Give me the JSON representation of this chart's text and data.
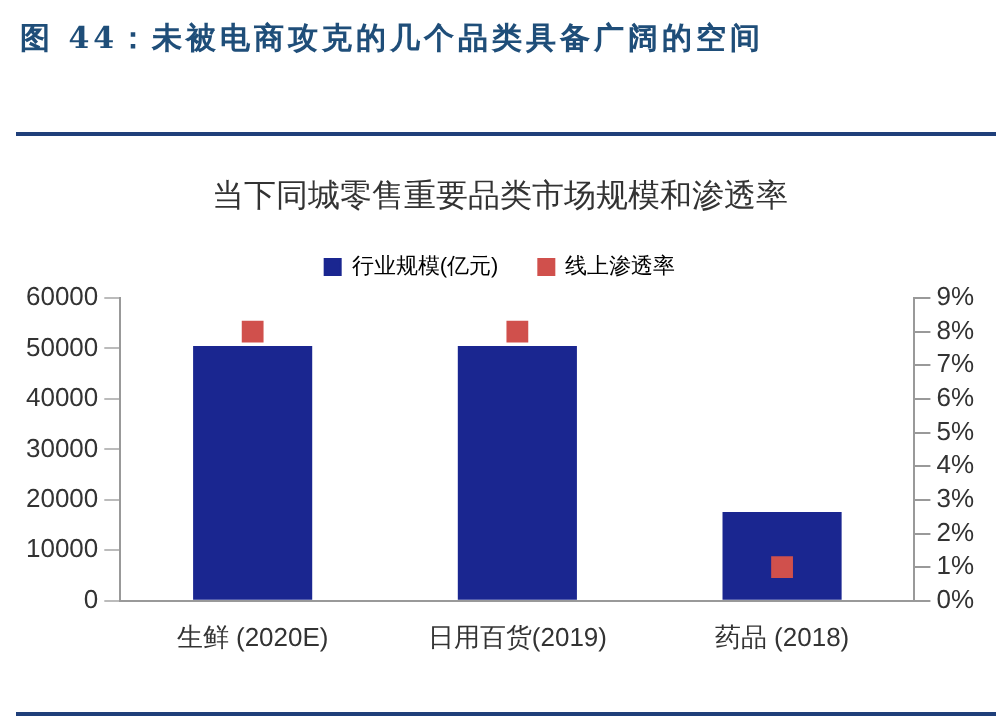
{
  "chart_data": {
    "type": "bar",
    "title": "图 44：未被电商攻克的几个品类具备广阔的空间",
    "subtitle": "当下同城零售重要品类市场规模和渗透率",
    "categories": [
      "生鲜 (2020E)",
      "日用百货(2019)",
      "药品 (2018)"
    ],
    "series": [
      {
        "name": "行业规模(亿元)",
        "color": "#1a2690",
        "values": [
          50500,
          50500,
          17600
        ]
      },
      {
        "name": "线上渗透率",
        "type": "scatter",
        "axis": "y2",
        "color": "#d0504c",
        "marker": "square",
        "x": [
          "生鲜 (2020E)",
          "日用百货(2019)",
          "药品 (2018)"
        ],
        "values": [
          8,
          8,
          1
        ]
      }
    ],
    "ylim": [
      0,
      60000
    ],
    "yticks": [
      0,
      10000,
      20000,
      30000,
      40000,
      50000,
      60000
    ],
    "y2lim": [
      0,
      9
    ],
    "y2ticks": [
      {
        "value": 0,
        "label": "0%"
      },
      {
        "value": 1,
        "label": "1%"
      },
      {
        "value": 2,
        "label": "2%"
      },
      {
        "value": 3,
        "label": "3%"
      },
      {
        "value": 4,
        "label": "4%"
      },
      {
        "value": 5,
        "label": "5%"
      },
      {
        "value": 6,
        "label": "6%"
      },
      {
        "value": 7,
        "label": "7%"
      },
      {
        "value": 8,
        "label": "8%"
      },
      {
        "value": 9,
        "label": "9%"
      }
    ],
    "legend": "top",
    "grid": false
  }
}
